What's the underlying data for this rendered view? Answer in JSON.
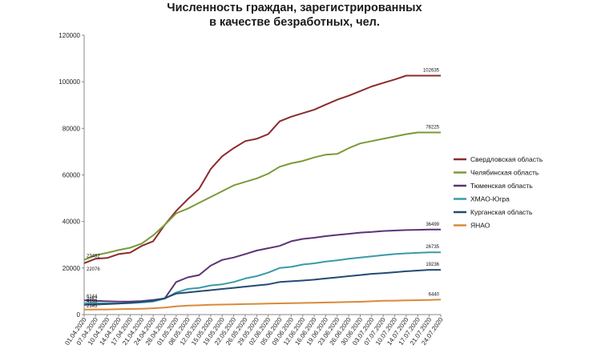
{
  "chart_data": {
    "type": "line",
    "title_line1": "Численность граждан, зарегистрированных",
    "title_line2": "в качестве безработных, чел.",
    "ylim": [
      0,
      120000
    ],
    "y_ticks": [
      "0",
      "20000",
      "40000",
      "60000",
      "80000",
      "100000",
      "120000"
    ],
    "grid": false,
    "legend_position": "right",
    "x": [
      "01.04.2020",
      "07.04.2020",
      "10.04.2020",
      "14.04.2020",
      "17.04.2020",
      "21.04.2020",
      "24.04.2020",
      "28.04.2020",
      "01.05.2020",
      "08.05.2020",
      "12.05.2020",
      "15.05.2020",
      "19.05.2020",
      "22.05.2020",
      "26.05.2020",
      "29.05.2020",
      "02.06.2020",
      "05.06.2020",
      "09.06.2020",
      "12.06.2020",
      "16.06.2020",
      "19.06.2020",
      "23.06.2020",
      "26.06.2020",
      "30.06.2020",
      "03.07.2020",
      "07.07.2020",
      "10.07.2020",
      "14.07.2020",
      "17.07.2020",
      "21.07.2020",
      "24.07.2020"
    ],
    "series": [
      {
        "name": "Свердловская область",
        "color": "#8b2c2c",
        "values": [
          22076,
          24000,
          24300,
          26000,
          26600,
          29500,
          31500,
          38500,
          44500,
          49500,
          54000,
          62500,
          68000,
          71500,
          74500,
          75500,
          77500,
          83000,
          85000,
          86500,
          88000,
          90200,
          92300,
          94000,
          96000,
          98000,
          99500,
          101000,
          102635,
          102635,
          102635,
          102635
        ],
        "end_label": "102635"
      },
      {
        "name": "Челябинская область",
        "color": "#7a9a3a",
        "values": [
          23482,
          25500,
          26500,
          27700,
          28700,
          30500,
          34000,
          38500,
          43500,
          45500,
          48000,
          50500,
          53000,
          55500,
          57000,
          58500,
          60500,
          63500,
          65000,
          66000,
          67500,
          68700,
          69000,
          71500,
          73500,
          74500,
          75500,
          76500,
          77500,
          78225,
          78225,
          78225
        ],
        "start_label": "23482",
        "end_label": "78225"
      },
      {
        "name": "Тюменская область",
        "color": "#5a3575",
        "values": [
          6144,
          5900,
          5700,
          5600,
          5600,
          5800,
          6300,
          6900,
          14000,
          16000,
          17000,
          21000,
          23500,
          24500,
          26000,
          27500,
          28500,
          29500,
          31500,
          32500,
          33000,
          33700,
          34200,
          34700,
          35200,
          35500,
          35900,
          36100,
          36300,
          36400,
          36499,
          36499
        ],
        "start_label": "6144",
        "end_label": "36499"
      },
      {
        "name": "ХМАО-Югра",
        "color": "#3a9aa8",
        "values": [
          4957,
          4900,
          4800,
          4800,
          4900,
          5200,
          5600,
          6800,
          9500,
          11000,
          11500,
          12500,
          13000,
          14000,
          15500,
          16500,
          18000,
          20000,
          20500,
          21500,
          22000,
          22800,
          23300,
          24000,
          24500,
          25000,
          25500,
          26000,
          26300,
          26500,
          26735,
          26735
        ],
        "start_label": "4957",
        "end_label": "26735"
      },
      {
        "name": "Курганская область",
        "color": "#254a74",
        "values": [
          4193,
          4300,
          4500,
          4700,
          5100,
          5500,
          6000,
          7000,
          9000,
          9500,
          10000,
          10500,
          11000,
          11500,
          12000,
          12500,
          13000,
          14000,
          14300,
          14600,
          15000,
          15500,
          16000,
          16500,
          17000,
          17500,
          17800,
          18200,
          18600,
          18900,
          19236,
          19236
        ],
        "start_label": "4193",
        "end_label": "19236"
      },
      {
        "name": "ЯНАО",
        "color": "#d98a3a",
        "values": [
          2145,
          2200,
          2200,
          2300,
          2400,
          2500,
          2700,
          3000,
          3500,
          3900,
          4000,
          4200,
          4300,
          4400,
          4500,
          4600,
          4700,
          4800,
          4900,
          5000,
          5100,
          5200,
          5300,
          5400,
          5500,
          5700,
          5900,
          6000,
          6100,
          6200,
          6300,
          6440
        ],
        "start_label": "2145",
        "end_label": "6440"
      }
    ]
  }
}
